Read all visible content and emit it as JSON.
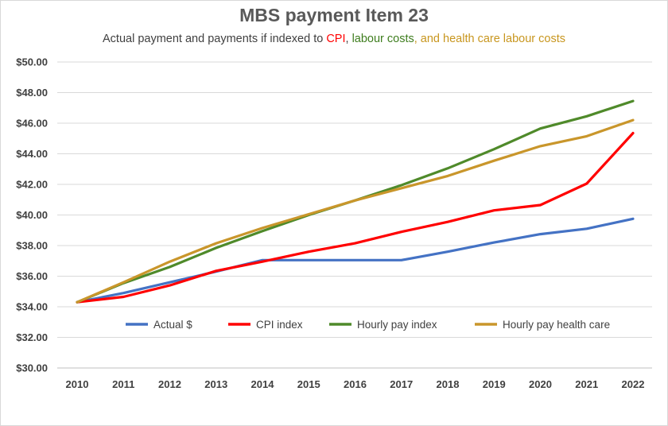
{
  "chart_data": {
    "type": "line",
    "title": "MBS payment Item 23",
    "subtitle": {
      "prefix": "Actual payment and payments if indexed to ",
      "cpi": "CPI",
      "sep": ", ",
      "labour": "labour costs",
      "health": ", and health care labour costs"
    },
    "x": [
      "2010",
      "2011",
      "2012",
      "2013",
      "2014",
      "2015",
      "2016",
      "2017",
      "2018",
      "2019",
      "2020",
      "2021",
      "2022"
    ],
    "ylim": [
      30,
      50
    ],
    "ytick_values": [
      30,
      32,
      34,
      36,
      38,
      40,
      42,
      44,
      46,
      48,
      50
    ],
    "ytick_labels": [
      "$30.00",
      "$32.00",
      "$34.00",
      "$36.00",
      "$38.00",
      "$40.00",
      "$42.00",
      "$44.00",
      "$46.00",
      "$48.00",
      "$50.00"
    ],
    "grid": true,
    "legend_position": "inside-bottom",
    "series": [
      {
        "name": "Actual $",
        "color": "#4472c4",
        "values": [
          34.3,
          34.9,
          35.6,
          36.3,
          37.05,
          37.05,
          37.05,
          37.05,
          37.6,
          38.2,
          38.75,
          39.1,
          39.75
        ]
      },
      {
        "name": "CPI index",
        "color": "#ff0000",
        "values": [
          34.3,
          34.65,
          35.4,
          36.35,
          36.95,
          37.6,
          38.15,
          38.9,
          39.55,
          40.3,
          40.65,
          42.05,
          45.35
        ]
      },
      {
        "name": "Hourly pay index",
        "color": "#4f8a2a",
        "values": [
          34.3,
          35.55,
          36.6,
          37.85,
          38.95,
          40.0,
          40.95,
          41.95,
          43.05,
          44.3,
          45.65,
          46.45,
          47.45
        ]
      },
      {
        "name": "Hourly pay health care",
        "color": "#c9962b",
        "values": [
          34.3,
          35.6,
          36.95,
          38.15,
          39.15,
          40.05,
          40.95,
          41.75,
          42.55,
          43.55,
          44.5,
          45.15,
          46.2
        ]
      }
    ]
  }
}
